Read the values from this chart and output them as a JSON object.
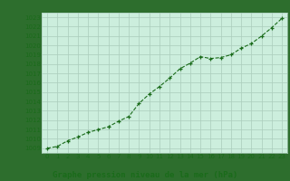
{
  "x": [
    0,
    1,
    2,
    3,
    4,
    5,
    6,
    7,
    8,
    9,
    10,
    11,
    12,
    13,
    14,
    15,
    16,
    17,
    18,
    19,
    20,
    21,
    22,
    23
  ],
  "y": [
    1009.0,
    1009.2,
    1009.8,
    1010.2,
    1010.7,
    1011.0,
    1011.3,
    1011.9,
    1012.4,
    1013.8,
    1014.8,
    1015.6,
    1016.5,
    1017.5,
    1018.1,
    1018.8,
    1018.6,
    1018.7,
    1019.0,
    1019.7,
    1020.2,
    1021.0,
    1021.9,
    1022.9
  ],
  "xlim": [
    0,
    23
  ],
  "ylim": [
    1009,
    1023
  ],
  "yticks": [
    1009,
    1010,
    1011,
    1012,
    1013,
    1014,
    1015,
    1016,
    1017,
    1018,
    1019,
    1020,
    1021,
    1022,
    1023
  ],
  "xticks": [
    0,
    1,
    2,
    3,
    4,
    5,
    6,
    7,
    8,
    9,
    10,
    11,
    12,
    13,
    14,
    15,
    16,
    17,
    18,
    19,
    20,
    21,
    22,
    23
  ],
  "line_color": "#1a6b1a",
  "marker_color": "#1a6b1a",
  "bg_color": "#cceedd",
  "grid_color": "#aaccbb",
  "title": "Graphe pression niveau de la mer (hPa)",
  "title_color": "#1a6b1a",
  "title_fontsize": 6.5,
  "tick_fontsize": 5.0,
  "tick_color": "#1a6b1a",
  "outer_bg": "#2d6e2d",
  "border_color": "#2d6e2d"
}
